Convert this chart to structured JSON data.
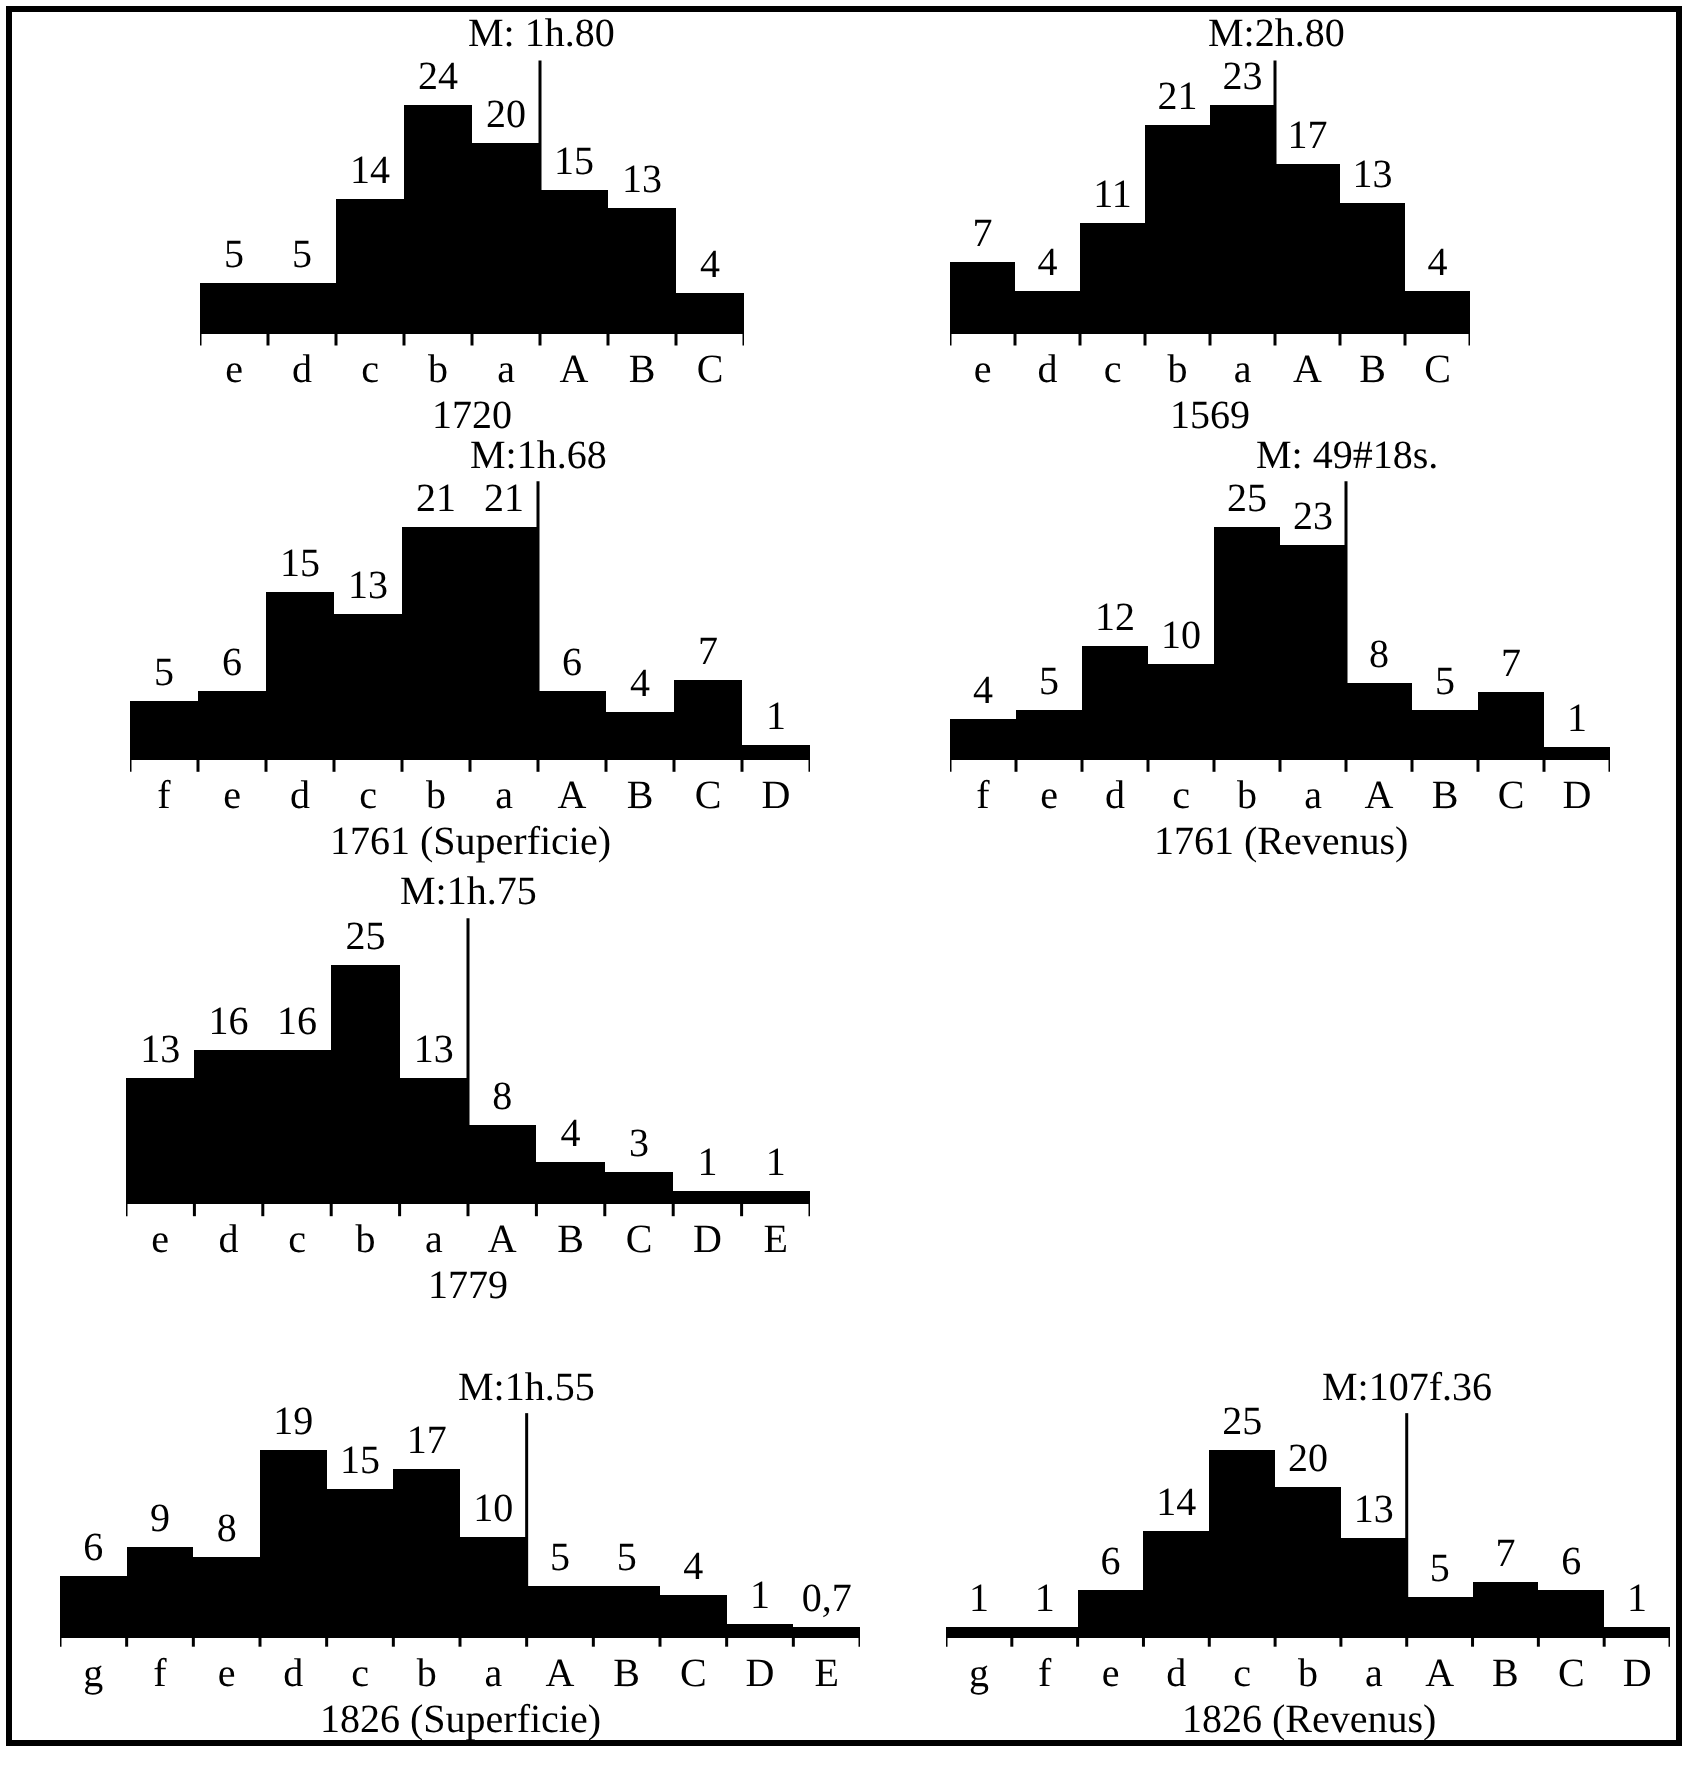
{
  "chart_data": [
    {
      "type": "bar",
      "title": "1720",
      "categories": [
        "e",
        "d",
        "c",
        "b",
        "a",
        "A",
        "B",
        "C"
      ],
      "values": [
        5,
        5,
        14,
        24,
        20,
        15,
        13,
        4
      ],
      "color": "#000000",
      "data_labels": true,
      "annotations": [
        "M: 1h.80"
      ]
    },
    {
      "type": "bar",
      "title": "1569",
      "categories": [
        "e",
        "d",
        "c",
        "b",
        "a",
        "A",
        "B",
        "C"
      ],
      "values": [
        7,
        4,
        11,
        21,
        23,
        17,
        13,
        4
      ],
      "color": "#000000",
      "data_labels": true,
      "annotations": [
        "M:2h.80"
      ]
    },
    {
      "type": "bar",
      "title": "1761 (Superficie)",
      "categories": [
        "f",
        "e",
        "d",
        "c",
        "b",
        "a",
        "A",
        "B",
        "C",
        "D"
      ],
      "values": [
        5,
        6,
        15,
        13,
        21,
        21,
        6,
        4,
        7,
        1
      ],
      "color": "#000000",
      "data_labels": true,
      "annotations": [
        "M:1h.68"
      ]
    },
    {
      "type": "bar",
      "title": "1761 (Revenus)",
      "categories": [
        "f",
        "e",
        "d",
        "c",
        "b",
        "a",
        "A",
        "B",
        "C",
        "D"
      ],
      "values": [
        4,
        5,
        12,
        10,
        25,
        23,
        8,
        5,
        7,
        1
      ],
      "color": "#000000",
      "data_labels": true,
      "annotations": [
        "M: 49#18s."
      ]
    },
    {
      "type": "bar",
      "title": "1779",
      "categories": [
        "e",
        "d",
        "c",
        "b",
        "a",
        "A",
        "B",
        "C",
        "D",
        "E"
      ],
      "values": [
        13,
        16,
        16,
        25,
        13,
        8,
        4,
        3,
        1,
        1
      ],
      "color": "#000000",
      "data_labels": true,
      "annotations": [
        "M:1h.75"
      ]
    },
    {
      "type": "bar",
      "title": "1826 (Superficie)",
      "categories": [
        "g",
        "f",
        "e",
        "d",
        "c",
        "b",
        "a",
        "A",
        "B",
        "C",
        "D",
        "E"
      ],
      "values": [
        6,
        9,
        8,
        19,
        15,
        17,
        10,
        5,
        5,
        4,
        1,
        0.7
      ],
      "value_labels": [
        "6",
        "9",
        "8",
        "19",
        "15",
        "17",
        "10",
        "5",
        "5",
        "4",
        "1",
        "0,7"
      ],
      "color": "#000000",
      "annotations": [
        "M:1h.55"
      ]
    },
    {
      "type": "bar",
      "title": "1826 (Revenus)",
      "categories": [
        "g",
        "f",
        "e",
        "d",
        "c",
        "b",
        "a",
        "A",
        "B",
        "C",
        "D"
      ],
      "values": [
        1,
        1,
        6,
        14,
        25,
        20,
        13,
        5,
        7,
        6,
        1
      ],
      "color": "#000000",
      "data_labels": true,
      "annotations": [
        "M:107f.36"
      ]
    }
  ]
}
